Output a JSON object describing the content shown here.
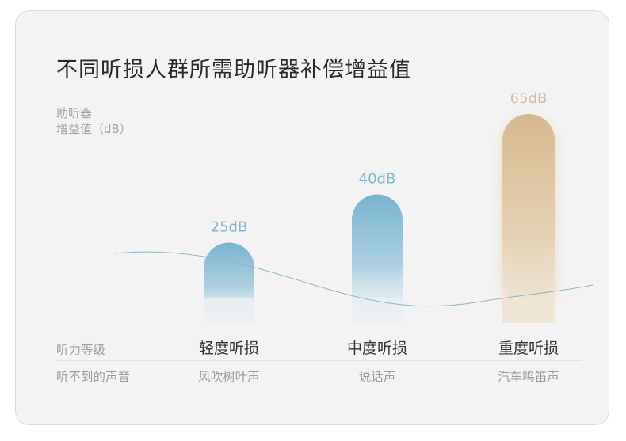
{
  "title": "不同听损人群所需助听器补偿增益值",
  "y_label_lines": [
    "助听器",
    "增益值（dB）"
  ],
  "row_labels": {
    "level": "听力等级",
    "sound": "听不到的声音"
  },
  "colors": {
    "blue_top": "#78b3d0",
    "blue_label": "#7fb6d3",
    "gold_top": "#d7b88e",
    "gold_label": "#d9bc95"
  },
  "chart_data": {
    "type": "bar",
    "categories": [
      "轻度听损",
      "中度听损",
      "重度听损"
    ],
    "values": [
      25,
      40,
      65
    ],
    "value_labels": [
      "25dB",
      "40dB",
      "65dB"
    ],
    "sounds": [
      "风吹树叶声",
      "说话声",
      "汽车鸣笛声"
    ],
    "unit": "dB",
    "ylim": [
      0,
      70
    ],
    "grid": false,
    "legend": "none"
  }
}
